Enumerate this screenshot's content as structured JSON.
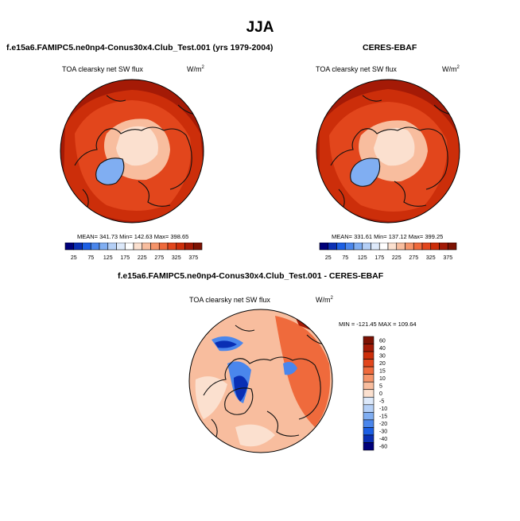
{
  "season": "JJA",
  "panels": [
    {
      "title": "f.e15a6.FAMIPC5.ne0np4-Conus30x4.Club_Test.001 (yrs 1979-2004)",
      "variable": "TOA clearsky net SW flux",
      "units_base": "W/m",
      "units_exp": "2",
      "stats": "MEAN= 341.73  Min= 142.63  Max= 398.65"
    },
    {
      "title": "CERES-EBAF",
      "variable": "TOA clearsky net SW flux",
      "units_base": "W/m",
      "units_exp": "2",
      "stats": "MEAN= 331.61  Min= 137.12  Max= 399.25"
    },
    {
      "title": "f.e15a6.FAMIPC5.ne0np4-Conus30x4.Club_Test.001 - CERES-EBAF",
      "variable": "TOA clearsky net SW flux",
      "units_base": "W/m",
      "units_exp": "2",
      "stats": "MIN = -121.45 MAX = 109.64"
    }
  ],
  "abs_colorbar": {
    "labels": [
      "25",
      "75",
      "125",
      "175",
      "225",
      "275",
      "325",
      "375"
    ],
    "colors": [
      "#00007a",
      "#0a2fb4",
      "#1c5fe4",
      "#4a86ec",
      "#80aef2",
      "#b4cff6",
      "#dde9fa",
      "#ffffff",
      "#fbe0cf",
      "#f8bd9e",
      "#f5946a",
      "#ef6a3c",
      "#e2461c",
      "#cc2e0a",
      "#a41a06",
      "#7d1203"
    ]
  },
  "diff_colorbar": {
    "labels": [
      "60",
      "40",
      "30",
      "20",
      "15",
      "10",
      "5",
      "0",
      "-5",
      "-10",
      "-15",
      "-20",
      "-30",
      "-40",
      "-60"
    ],
    "colors": [
      "#7d1203",
      "#a41a06",
      "#cc2e0a",
      "#e2461c",
      "#ef6a3c",
      "#f5946a",
      "#f8bd9e",
      "#fbe0cf",
      "#dde9fa",
      "#b4cff6",
      "#80aef2",
      "#4a86ec",
      "#1c5fe4",
      "#0a2fb4",
      "#00007a"
    ]
  },
  "map_colors": {
    "ocean_dark": "#a41a06",
    "ocean_mid": "#cc2e0a",
    "ocean_light": "#e2461c",
    "ice_light": "#f8bd9e",
    "ice_lighter": "#fbe0cf",
    "greenland": "#80aef2",
    "diff_base": "#f8bd9e",
    "diff_warm": "#ef6a3c",
    "diff_neutral": "#fbe0cf",
    "diff_cool": "#4a86ec",
    "diff_strong": "#0a2fb4",
    "coast": "#111111"
  }
}
